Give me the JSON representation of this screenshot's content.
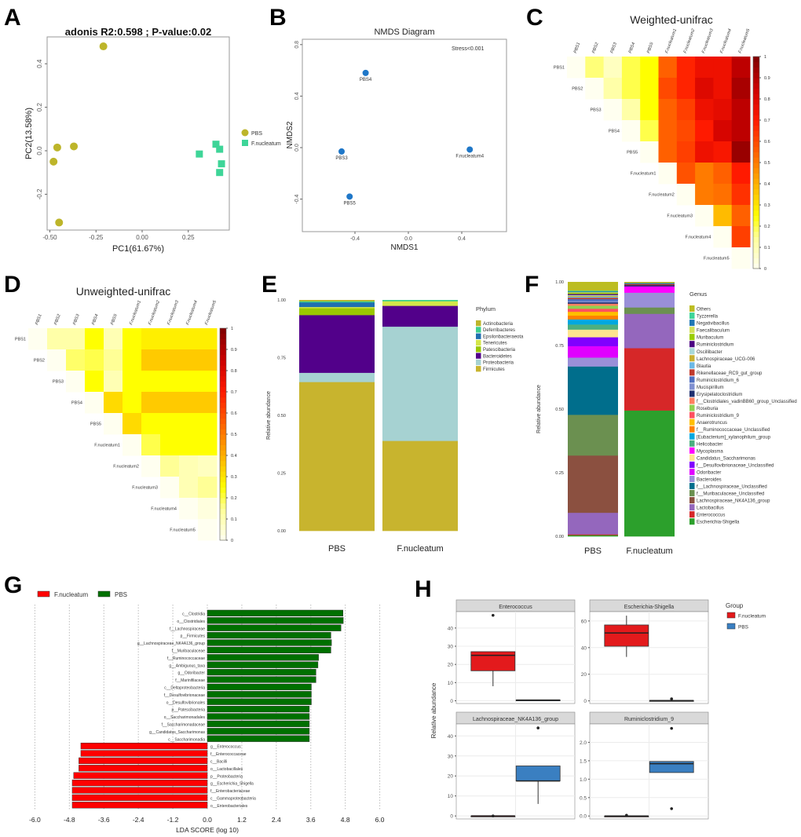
{
  "panel_letters": [
    "A",
    "B",
    "C",
    "D",
    "E",
    "F",
    "G",
    "H"
  ],
  "chart_data": [
    {
      "type": "scatter",
      "title": "adonis  R2:0.598 ; P-value:0.02",
      "xlabel": "PC1(61.67%)",
      "ylabel": "PC2(13.58%)",
      "x_ticks": [
        -0.5,
        -0.25,
        0,
        0.25
      ],
      "x_tick_labels": [
        "-0.50",
        "-0.25",
        "0.00",
        "0.25"
      ],
      "y_ticks": [
        -0.2,
        0,
        0.2,
        0.4
      ],
      "y_tick_labels": [
        "-0.2",
        "0.0",
        "0.2",
        "0.4"
      ],
      "legend": [
        "PBS",
        "F.nucleatum"
      ],
      "series": [
        {
          "name": "PBS",
          "color": "#bdb52a",
          "shape": "circle",
          "points": [
            [
              -0.21,
              0.48
            ],
            [
              -0.46,
              0.015
            ],
            [
              -0.37,
              0.02
            ],
            [
              -0.48,
              -0.05
            ],
            [
              -0.45,
              -0.33
            ]
          ]
        },
        {
          "name": "F.nucleatum",
          "color": "#3ed598",
          "shape": "square",
          "points": [
            [
              0.31,
              -0.015
            ],
            [
              0.4,
              0.03
            ],
            [
              0.42,
              0.007
            ],
            [
              0.43,
              -0.06
            ],
            [
              0.42,
              -0.1
            ]
          ]
        }
      ]
    },
    {
      "type": "scatter",
      "title": "NMDS Diagram",
      "annotation": "Stress<0.001",
      "xlabel": "NMDS1",
      "ylabel": "NMDS2",
      "x_ticks": [
        -0.4,
        0,
        0.4
      ],
      "x_tick_labels": [
        "-0.4",
        "0.0",
        "0.4"
      ],
      "y_ticks": [
        -0.4,
        0,
        0.4,
        0.8
      ],
      "y_tick_labels": [
        "-0.4",
        "0.0",
        "0.4",
        "0.8"
      ],
      "color": "#1f77c8",
      "points": [
        {
          "label": "PBS4",
          "x": -0.32,
          "y": 0.58
        },
        {
          "label": "PBS3",
          "x": -0.5,
          "y": -0.03
        },
        {
          "label": "PBS5",
          "x": -0.44,
          "y": -0.38
        },
        {
          "label": "F.nucleatum4",
          "x": 0.46,
          "y": -0.015
        }
      ]
    },
    {
      "type": "heatmap",
      "title": "Weighted-unifrac",
      "labels": [
        "PBS1",
        "PBS2",
        "PBS3",
        "PBS4",
        "PBS5",
        "F.nucleatum1",
        "F.nucleatum2",
        "F.nucleatum3",
        "F.nucleatum4",
        "F.nucleatum5"
      ],
      "upper_triangle": [
        [
          0,
          0.17,
          0.08,
          0.2,
          0.25,
          0.55,
          0.68,
          0.75,
          0.75,
          0.88
        ],
        [
          0,
          0.12,
          0.2,
          0.25,
          0.6,
          0.68,
          0.8,
          0.75,
          0.92
        ],
        [
          0,
          0.12,
          0.25,
          0.55,
          0.62,
          0.75,
          0.78,
          0.88
        ],
        [
          0,
          0.2,
          0.55,
          0.6,
          0.7,
          0.82,
          0.88
        ],
        [
          0,
          0.55,
          0.62,
          0.75,
          0.72,
          0.95
        ],
        [
          0,
          0.58,
          0.5,
          0.55,
          0.7
        ],
        [
          0,
          0.5,
          0.52,
          0.65
        ],
        [
          0,
          0.38,
          0.55
        ],
        [
          0,
          0.62
        ],
        [
          0
        ]
      ],
      "colorbar_ticks": [
        "0",
        "0.1",
        "0.2",
        "0.3",
        "0.4",
        "0.5",
        "0.6",
        "0.7",
        "0.8",
        "0.9",
        "1"
      ],
      "range": [
        0,
        1
      ]
    },
    {
      "type": "heatmap",
      "title": "Unweighted-unifrac",
      "labels": [
        "PBS1",
        "PBS2",
        "PBS3",
        "PBS4",
        "PBS5",
        "F.nucleatum1",
        "F.nucleatum2",
        "F.nucleatum3",
        "F.nucleatum4",
        "F.nucleatum5"
      ],
      "upper_triangle": [
        [
          0,
          0.12,
          0.12,
          0.25,
          0.1,
          0.25,
          0.28,
          0.28,
          0.28,
          0.28
        ],
        [
          0,
          0.18,
          0.2,
          0.15,
          0.25,
          0.35,
          0.35,
          0.35,
          0.35
        ],
        [
          0,
          0.25,
          0.1,
          0.25,
          0.25,
          0.25,
          0.25,
          0.25
        ],
        [
          0,
          0.32,
          0.25,
          0.35,
          0.35,
          0.35,
          0.35
        ],
        [
          0,
          0.32,
          0.25,
          0.25,
          0.25,
          0.25
        ],
        [
          0,
          0.2,
          0.25,
          0.25,
          0.25
        ],
        [
          0,
          0.15,
          0.1,
          0.08
        ],
        [
          0,
          0.1,
          0.15
        ],
        [
          0,
          0.03
        ],
        [
          0
        ]
      ],
      "colorbar_ticks": [
        "0",
        "0.1",
        "0.2",
        "0.3",
        "0.4",
        "0.5",
        "0.6",
        "0.7",
        "0.8",
        "0.9",
        "1"
      ],
      "range": [
        0,
        1
      ]
    },
    {
      "type": "bar",
      "stacked": true,
      "ylabel": "Relative abundance",
      "y_tick_labels": [
        "0.00",
        "0.25",
        "0.50",
        "0.75",
        "1.00"
      ],
      "categories": [
        "PBS",
        "F.nucleatum"
      ],
      "legend_title": "Phylum",
      "legend": [
        "Actinobacteria",
        "Deferribacteres",
        "Epsilonbacteraeota",
        "Tenericutes",
        "Patescibacteria",
        "Bacteroidetes",
        "Proteobacteria",
        "Firmicutes"
      ],
      "colors": [
        "#bdb52a",
        "#3ecf8e",
        "#1f6fb0",
        "#d4e64a",
        "#9ac800",
        "#52008a",
        "#a6d2d2",
        "#c8b42e"
      ],
      "values": {
        "PBS": [
          0.005,
          0.005,
          0.02,
          0.005,
          0.03,
          0.25,
          0.04,
          0.645
        ],
        "F.nucleatum": [
          0,
          0.005,
          0,
          0.02,
          0,
          0.09,
          0.495,
          0.39
        ]
      }
    },
    {
      "type": "bar",
      "stacked": true,
      "ylabel": "Relative abundance",
      "y_tick_labels": [
        "0.00",
        "0.25",
        "0.50",
        "0.75",
        "1.00"
      ],
      "categories": [
        "PBS",
        "F.nucleatum"
      ],
      "legend_title": "Genus",
      "legend": [
        "Others",
        "Tyzzerella",
        "Negativibacillus",
        "Faecalibaculum",
        "Muribaculum",
        "Ruminiclostridium",
        "Oscillibacter",
        "Lachnospiraceae_UCG-006",
        "Blautia",
        "Rikenellaceae_RC9_gut_group",
        "Ruminiclostridium_6",
        "Mucispirillum",
        "Erysipelatoclostridium",
        "f__Clostridiales_vadinBB60_group_Unclassified",
        "Roseburia",
        "Ruminiclostridium_9",
        "Anaerotruncus",
        "f__Ruminococcaceae_Unclassified",
        "[Eubacterium]_xylanophilum_group",
        "Helicobacter",
        "Mycoplasma",
        "Candidatus_Saccharimonas",
        "f__Desulfovibrionaceae_Unclassified",
        "Odoribacter",
        "Bacteroides",
        "f__Lachnospiraceae_Unclassified",
        "f__Muribaculaceae_Unclassified",
        "Lachnospiraceae_NK4A136_group",
        "Lactobacillus",
        "Enterococcus",
        "Escherichia-Shigella"
      ],
      "colors": [
        "#bcbd22",
        "#3ed598",
        "#1f77b4",
        "#d4e157",
        "#9acd00",
        "#4b0082",
        "#a8d8d8",
        "#c9b030",
        "#6cb8e6",
        "#c0392b",
        "#4f6fc0",
        "#7f8fd0",
        "#1f2f6f",
        "#ff7f60",
        "#8fd14f",
        "#ff5060",
        "#ffbf00",
        "#ff8000",
        "#00a8e0",
        "#4caf80",
        "#ff00ff",
        "#ffe58f",
        "#8000ff",
        "#e000ff",
        "#9a8fd8",
        "#006e8c",
        "#6b9050",
        "#8b5040",
        "#9467bd",
        "#d62728",
        "#2ca02c"
      ],
      "values": {
        "PBS": [
          0.034,
          0.003,
          0.003,
          0.003,
          0.004,
          0.004,
          0.003,
          0.004,
          0.004,
          0.005,
          0.008,
          0.005,
          0.005,
          0.008,
          0.012,
          0.012,
          0.015,
          0.015,
          0.02,
          0.02,
          0,
          0.03,
          0.035,
          0.045,
          0.035,
          0.19,
          0.16,
          0.225,
          0.085,
          0.003,
          0.005
        ],
        "F.nucleatum": [
          0.004,
          0,
          0.004,
          0,
          0,
          0,
          0,
          0,
          0,
          0.004,
          0,
          0,
          0.005,
          0,
          0,
          0,
          0,
          0,
          0,
          0,
          0.025,
          0,
          0,
          0,
          0.058,
          0,
          0.025,
          0,
          0.135,
          0.245,
          0.495
        ]
      }
    },
    {
      "type": "bar",
      "orientation": "horizontal",
      "xlabel": "LDA SCORE (log 10)",
      "x_ticks": [
        -6,
        -4.8,
        -3.6,
        -2.4,
        -1.2,
        0,
        1.2,
        2.4,
        3.6,
        4.8,
        6
      ],
      "x_tick_labels": [
        "-6.0",
        "-4.8",
        "-3.6",
        "-2.4",
        "-1.2",
        "0.0",
        "1.2",
        "2.4",
        "3.6",
        "4.8",
        "6.0"
      ],
      "xlim": [
        -6,
        6
      ],
      "legend": [
        {
          "name": "F.nucleatum",
          "color": "#ff0000"
        },
        {
          "name": "PBS",
          "color": "#007000"
        }
      ],
      "bars": [
        {
          "label": "c__Clostridia",
          "value": 4.72
        },
        {
          "label": "o__Clostridiales",
          "value": 4.73
        },
        {
          "label": "f__Lachnospiraceae",
          "value": 4.65
        },
        {
          "label": "p__Firmicutes",
          "value": 4.3
        },
        {
          "label": "g__Lachnospiraceae_NK4A136_group",
          "value": 4.32
        },
        {
          "label": "f__Muribaculaceae",
          "value": 4.3
        },
        {
          "label": "f__Ruminococcaceae",
          "value": 3.87
        },
        {
          "label": "g__Ambiguous_taxa",
          "value": 3.85
        },
        {
          "label": "g__Odoribacter",
          "value": 3.78
        },
        {
          "label": "f__Marinifilaceae",
          "value": 3.78
        },
        {
          "label": "c__Deltaproteobacteria",
          "value": 3.62
        },
        {
          "label": "f__Desulfovibrionaceae",
          "value": 3.62
        },
        {
          "label": "o__Desulfovibrionales",
          "value": 3.62
        },
        {
          "label": "p__Patescibacteria",
          "value": 3.55
        },
        {
          "label": "o__Saccharimonadales",
          "value": 3.55
        },
        {
          "label": "f__Saccharimonadaceae",
          "value": 3.55
        },
        {
          "label": "g__Candidatus_Saccharimonas",
          "value": 3.55
        },
        {
          "label": "c__Saccharimonadia",
          "value": 3.55
        },
        {
          "label": "g__Enterococcus",
          "value": -4.4
        },
        {
          "label": "f__Enterococcaceae",
          "value": -4.4
        },
        {
          "label": "c__Bacilli",
          "value": -4.47
        },
        {
          "label": "o__Lactobacillales",
          "value": -4.47
        },
        {
          "label": "p__Proteobacteria",
          "value": -4.65
        },
        {
          "label": "g__Escherichia_Shigella",
          "value": -4.7
        },
        {
          "label": "f__Enterobacteriaceae",
          "value": -4.7
        },
        {
          "label": "c__Gammaproteobacteria",
          "value": -4.7
        },
        {
          "label": "o__Enterobacteriales",
          "value": -4.7
        }
      ]
    },
    {
      "type": "box",
      "ylabel": "Relative abundance",
      "legend_title": "Group",
      "groups": [
        {
          "name": "F.nucleatum",
          "color": "#e31a1c"
        },
        {
          "name": "PBS",
          "color": "#3a7fc1"
        }
      ],
      "facets": [
        {
          "title": "Enterococcus",
          "ylim": [
            -1.5,
            49
          ],
          "y_ticks": [
            0,
            10,
            20,
            30,
            40
          ],
          "y_tick_labels": [
            "0",
            "10",
            "20",
            "30",
            "40"
          ],
          "boxes": [
            {
              "min": 8,
              "q1": 16.5,
              "median": 25,
              "q3": 27,
              "max": 27,
              "outliers": [
                47
              ]
            },
            {
              "min": 0.2,
              "q1": 0.2,
              "median": 0.4,
              "q3": 0.5,
              "max": 0.5,
              "outliers": []
            }
          ]
        },
        {
          "title": "Escherichia-Shigella",
          "ylim": [
            -2,
            67
          ],
          "y_ticks": [
            0,
            20,
            40,
            60
          ],
          "y_tick_labels": [
            "0",
            "20",
            "40",
            "60"
          ],
          "boxes": [
            {
              "min": 33,
              "q1": 41,
              "median": 51,
              "q3": 57,
              "max": 64,
              "outliers": []
            },
            {
              "min": 0.1,
              "q1": 0.1,
              "median": 0.2,
              "q3": 0.3,
              "max": 0.3,
              "outliers": [
                1.5
              ]
            }
          ]
        },
        {
          "title": "Lachnospiraceae_NK4A136_group",
          "ylim": [
            -1.5,
            46
          ],
          "y_ticks": [
            0,
            10,
            20,
            30,
            40
          ],
          "y_tick_labels": [
            "0",
            "10",
            "20",
            "30",
            "40"
          ],
          "boxes": [
            {
              "min": 0,
              "q1": 0,
              "median": 0,
              "q3": 0,
              "max": 0,
              "outliers": [
                0
              ]
            },
            {
              "min": 6,
              "q1": 17.5,
              "median": 17.5,
              "q3": 25,
              "max": 25,
              "outliers": [
                44
              ]
            }
          ]
        },
        {
          "title": "Ruminiclostridium_9",
          "ylim": [
            -0.08,
            2.5
          ],
          "y_ticks": [
            0,
            0.5,
            1,
            1.5,
            2
          ],
          "y_tick_labels": [
            "0.0",
            "0.5",
            "1.0",
            "1.5",
            "2.0"
          ],
          "boxes": [
            {
              "min": 0,
              "q1": 0,
              "median": 0,
              "q3": 0,
              "max": 0,
              "outliers": [
                0.02
              ]
            },
            {
              "min": 1.18,
              "q1": 1.18,
              "median": 1.42,
              "q3": 1.48,
              "max": 1.48,
              "outliers": [
                2.38,
                0.2
              ]
            }
          ]
        }
      ]
    }
  ]
}
